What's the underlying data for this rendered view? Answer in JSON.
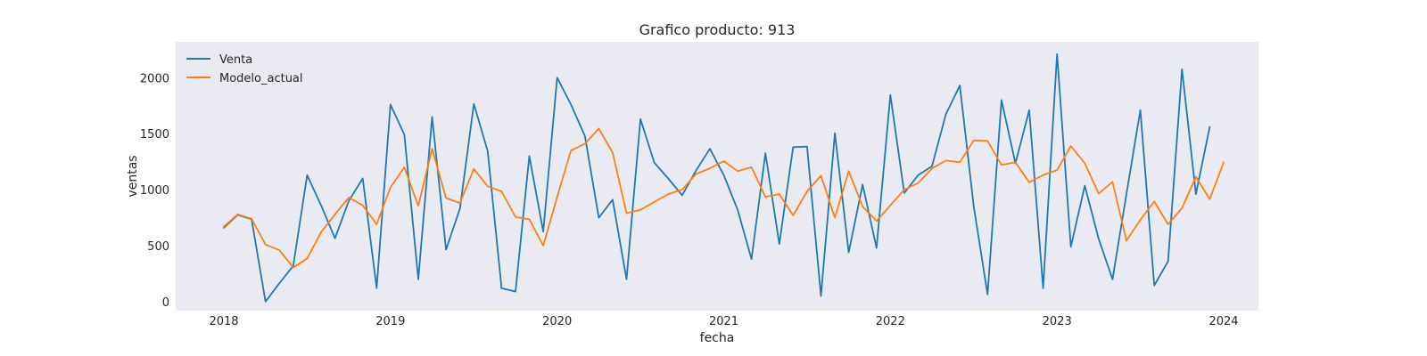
{
  "chart_data": {
    "type": "line",
    "title": "Grafico producto: 913",
    "xlabel": "fecha",
    "ylabel": "ventas",
    "x_start": "2018-01",
    "x_frequency": "monthly",
    "x_ticks": [
      "2018",
      "2019",
      "2020",
      "2021",
      "2022",
      "2023",
      "2024"
    ],
    "y_ticks": [
      "0",
      "500",
      "1000",
      "1500",
      "2000"
    ],
    "ylim": [
      -80,
      2320
    ],
    "grid": false,
    "legend_position": "top-left",
    "series": [
      {
        "name": "Venta",
        "color": "#1f77b4",
        "values": [
          660,
          775,
          735,
          0,
          165,
          320,
          1130,
          860,
          565,
          900,
          1100,
          120,
          1760,
          1490,
          200,
          1650,
          465,
          830,
          1765,
          1345,
          120,
          90,
          1300,
          625,
          2000,
          1760,
          1480,
          750,
          910,
          200,
          1630,
          1240,
          1100,
          950,
          1170,
          1365,
          1130,
          820,
          380,
          1325,
          515,
          1380,
          1385,
          50,
          1505,
          440,
          1045,
          480,
          1845,
          970,
          1130,
          1210,
          1675,
          1930,
          850,
          65,
          1800,
          1235,
          1710,
          120,
          2210,
          490,
          1035,
          560,
          200,
          960,
          1710,
          145,
          360,
          2075,
          960,
          1560
        ]
      },
      {
        "name": "Modelo_actual",
        "color": "#ff7f0e",
        "values": [
          670,
          780,
          740,
          510,
          460,
          305,
          385,
          620,
          780,
          930,
          860,
          690,
          1020,
          1200,
          855,
          1365,
          925,
          880,
          1185,
          1030,
          985,
          755,
          735,
          500,
          935,
          1350,
          1410,
          1545,
          1330,
          790,
          820,
          890,
          960,
          1000,
          1140,
          1190,
          1255,
          1165,
          1200,
          935,
          960,
          770,
          985,
          1125,
          750,
          1165,
          850,
          720,
          860,
          1000,
          1060,
          1190,
          1260,
          1245,
          1440,
          1435,
          1220,
          1245,
          1065,
          1130,
          1175,
          1390,
          1235,
          965,
          1070,
          545,
          730,
          895,
          690,
          835,
          1115,
          915,
          1245
        ]
      }
    ]
  }
}
